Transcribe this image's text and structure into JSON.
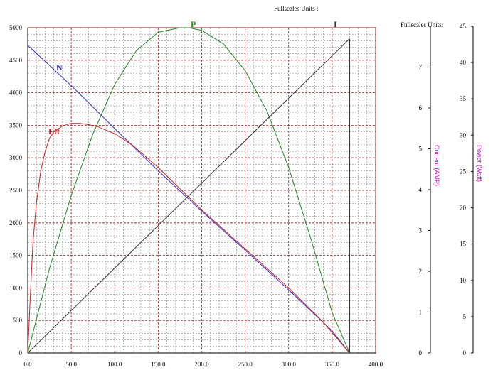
{
  "chart_data": {
    "type": "line",
    "header_main": "Fullscales Units :",
    "header_right": "Fullscales Units:",
    "x_ticks": [
      "0.0",
      "50.0",
      "100.0",
      "150.0",
      "200.0",
      "250.0",
      "300.0",
      "350.0",
      "400.0"
    ],
    "xlim": [
      0,
      400
    ],
    "left_axis": {
      "ticks": [
        "0",
        "500",
        "1000",
        "1500",
        "2000",
        "2500",
        "3000",
        "3500",
        "4000",
        "4500",
        "5000"
      ],
      "ylim": [
        0,
        5000
      ]
    },
    "current_axis": {
      "label": "Current (AMP)",
      "ticks": [
        "0",
        "1",
        "2",
        "3",
        "4",
        "5",
        "6",
        "7"
      ],
      "ylim": [
        0,
        8
      ]
    },
    "power_axis": {
      "label": "Power (Watt)",
      "ticks": [
        "0",
        "5",
        "10",
        "15",
        "20",
        "25",
        "30",
        "35",
        "40",
        "45"
      ],
      "ylim": [
        0,
        45
      ]
    },
    "grid": true,
    "series": [
      {
        "name": "N",
        "color": "#3333cc",
        "x": [
          0,
          50,
          100,
          150,
          200,
          250,
          300,
          350,
          370
        ],
        "y": [
          4730,
          4110,
          3450,
          2800,
          2180,
          1580,
          970,
          340,
          0
        ]
      },
      {
        "name": "Eff",
        "color": "#cc2222",
        "x": [
          0,
          3,
          6,
          10,
          15,
          20,
          25,
          30,
          40,
          50,
          60,
          70,
          80,
          100,
          120,
          150,
          200,
          250,
          300,
          340,
          370
        ],
        "y": [
          0,
          900,
          1700,
          2300,
          2800,
          3100,
          3300,
          3400,
          3490,
          3530,
          3530,
          3510,
          3480,
          3370,
          3200,
          2850,
          2200,
          1600,
          1000,
          470,
          0
        ]
      },
      {
        "name": "P",
        "color": "#228822",
        "x": [
          0,
          25,
          50,
          75,
          100,
          125,
          150,
          175,
          185,
          200,
          225,
          250,
          275,
          300,
          325,
          350,
          370
        ],
        "y": [
          0,
          1300,
          2420,
          3370,
          4130,
          4650,
          4930,
          5000,
          5000,
          4960,
          4750,
          4340,
          3720,
          2850,
          1780,
          620,
          0
        ]
      },
      {
        "name": "I",
        "color": "#333333",
        "x": [
          0,
          370
        ],
        "y": [
          0,
          4830
        ]
      }
    ]
  }
}
